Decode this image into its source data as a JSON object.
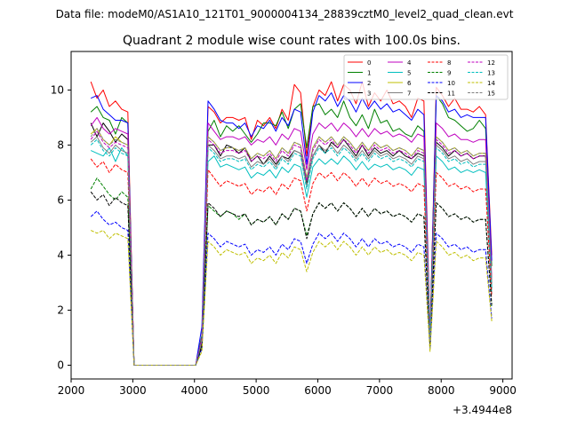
{
  "suptitle": "Data file: modeM0/AS1A10_121T01_9000004134_28839cztM0_level2_quad_clean.evt",
  "chart_data": {
    "type": "line",
    "title": "Quadrant 2 module wise count rates with 100.0s bins.",
    "xlabel": "",
    "ylabel": "",
    "x_offset_label": "+3.4944e8",
    "xlim": [
      2000,
      9150
    ],
    "ylim": [
      -0.5,
      11.4
    ],
    "xticks": [
      2000,
      3000,
      4000,
      5000,
      6000,
      7000,
      8000,
      9000
    ],
    "yticks": [
      0,
      2,
      4,
      6,
      8,
      10
    ],
    "x": [
      2320,
      2420,
      2520,
      2620,
      2720,
      2820,
      2920,
      3020,
      3120,
      3220,
      3320,
      3420,
      3520,
      3620,
      3720,
      3820,
      3920,
      4020,
      4120,
      4220,
      4320,
      4420,
      4520,
      4620,
      4720,
      4820,
      4920,
      5020,
      5120,
      5220,
      5320,
      5420,
      5520,
      5620,
      5720,
      5820,
      5920,
      6020,
      6120,
      6220,
      6320,
      6420,
      6520,
      6620,
      6720,
      6820,
      6920,
      7020,
      7120,
      7220,
      7320,
      7420,
      7520,
      7620,
      7720,
      7820,
      7920,
      8020,
      8120,
      8220,
      8320,
      8420,
      8520,
      8620,
      8720,
      8820
    ],
    "legend": {
      "location": "upper right",
      "ncol": 4
    },
    "series": [
      {
        "name": "0",
        "color": "#ff0000",
        "dash": "solid",
        "values": [
          10.3,
          9.7,
          10.0,
          9.4,
          9.6,
          9.3,
          9.2,
          0,
          0,
          0,
          0,
          0,
          0,
          0,
          0,
          0,
          0,
          0,
          1.0,
          9.4,
          9.2,
          8.8,
          9.0,
          9.0,
          8.9,
          9.0,
          8.2,
          8.9,
          8.7,
          9.0,
          8.6,
          9.3,
          8.9,
          10.2,
          9.9,
          7.6,
          9.4,
          10.0,
          9.8,
          10.3,
          9.6,
          10.2,
          10.0,
          9.5,
          10.3,
          9.4,
          9.9,
          9.6,
          10.0,
          9.5,
          9.6,
          9.4,
          9.0,
          9.7,
          9.6,
          1.1,
          10.1,
          9.8,
          9.4,
          9.7,
          9.3,
          9.3,
          9.2,
          9.4,
          9.1,
          4.0
        ]
      },
      {
        "name": "1",
        "color": "#008000",
        "dash": "solid",
        "values": [
          9.2,
          9.4,
          9.0,
          8.9,
          8.4,
          9.0,
          8.8,
          0,
          0,
          0,
          0,
          0,
          0,
          0,
          0,
          0,
          0,
          0,
          1.1,
          8.5,
          8.9,
          8.3,
          8.7,
          8.5,
          8.7,
          8.4,
          8.1,
          8.4,
          8.8,
          8.8,
          8.7,
          9.2,
          8.6,
          9.3,
          9.5,
          7.9,
          9.4,
          9.5,
          9.1,
          9.3,
          9.0,
          9.6,
          9.0,
          8.7,
          9.1,
          8.6,
          9.3,
          8.8,
          8.9,
          8.5,
          8.6,
          8.4,
          8.3,
          8.7,
          8.5,
          1.0,
          9.8,
          9.5,
          9.0,
          8.9,
          8.7,
          8.5,
          8.6,
          8.9,
          8.6,
          3.6
        ]
      },
      {
        "name": "2",
        "color": "#0000ff",
        "dash": "solid",
        "values": [
          9.7,
          9.8,
          9.3,
          9.1,
          8.9,
          8.9,
          8.8,
          0,
          0,
          0,
          0,
          0,
          0,
          0,
          0,
          0,
          0,
          0,
          1.4,
          9.6,
          9.3,
          8.9,
          8.8,
          8.8,
          8.6,
          8.8,
          8.3,
          8.7,
          8.6,
          8.9,
          8.5,
          9.0,
          8.7,
          9.3,
          9.2,
          7.3,
          9.2,
          9.8,
          9.6,
          9.9,
          9.4,
          9.8,
          9.6,
          9.2,
          9.7,
          9.3,
          9.6,
          9.3,
          9.5,
          9.2,
          9.3,
          9.1,
          8.9,
          9.3,
          9.1,
          1.0,
          9.8,
          9.6,
          9.2,
          9.3,
          9.0,
          9.1,
          9.0,
          9.0,
          9.0,
          3.8
        ]
      },
      {
        "name": "3",
        "color": "#000000",
        "dash": "solid",
        "values": [
          8.8,
          8.3,
          8.8,
          8.5,
          8.1,
          8.4,
          8.2,
          0,
          0,
          0,
          0,
          0,
          0,
          0,
          0,
          0,
          0,
          0,
          0.9,
          8.0,
          8.0,
          7.6,
          8.0,
          7.9,
          7.7,
          7.9,
          7.4,
          7.6,
          7.3,
          7.6,
          7.3,
          7.6,
          7.5,
          7.8,
          7.7,
          6.6,
          7.6,
          8.0,
          7.7,
          8.1,
          7.9,
          8.2,
          7.9,
          7.6,
          8.0,
          7.6,
          7.9,
          7.7,
          7.8,
          7.6,
          7.8,
          7.6,
          7.5,
          7.7,
          7.6,
          0.9,
          8.1,
          7.9,
          7.6,
          7.8,
          7.6,
          7.7,
          7.5,
          7.6,
          7.6,
          2.8
        ]
      },
      {
        "name": "4",
        "color": "#bf00bf",
        "dash": "solid",
        "values": [
          8.7,
          9.0,
          8.6,
          8.4,
          8.6,
          8.5,
          8.4,
          0,
          0,
          0,
          0,
          0,
          0,
          0,
          0,
          0,
          0,
          0,
          1.0,
          8.8,
          8.5,
          8.2,
          8.3,
          8.3,
          8.2,
          8.3,
          8.0,
          8.2,
          8.1,
          8.3,
          8.0,
          8.4,
          8.2,
          8.6,
          8.5,
          7.1,
          8.4,
          8.8,
          8.6,
          8.8,
          8.5,
          8.8,
          8.6,
          8.3,
          8.6,
          8.3,
          8.6,
          8.4,
          8.5,
          8.3,
          8.4,
          8.3,
          8.1,
          8.4,
          8.3,
          1.0,
          8.8,
          8.6,
          8.3,
          8.4,
          8.2,
          8.2,
          8.1,
          8.2,
          8.2,
          3.2
        ]
      },
      {
        "name": "5",
        "color": "#00bfbf",
        "dash": "solid",
        "values": [
          7.8,
          7.7,
          7.6,
          7.9,
          7.4,
          7.9,
          7.6,
          0,
          0,
          0,
          0,
          0,
          0,
          0,
          0,
          0,
          0,
          0,
          0.8,
          7.4,
          7.6,
          7.2,
          7.3,
          7.2,
          7.1,
          7.2,
          6.8,
          7.0,
          6.9,
          7.1,
          6.8,
          7.2,
          7.0,
          7.3,
          7.2,
          6.1,
          7.2,
          7.5,
          7.3,
          7.5,
          7.3,
          7.6,
          7.4,
          7.1,
          7.4,
          7.1,
          7.3,
          7.2,
          7.3,
          7.1,
          7.2,
          7.1,
          6.9,
          7.2,
          7.1,
          0.8,
          7.6,
          7.4,
          7.1,
          7.2,
          7.0,
          7.1,
          7.0,
          7.1,
          7.0,
          2.6
        ]
      },
      {
        "name": "6",
        "color": "#bfbf00",
        "dash": "solid",
        "values": [
          8.4,
          8.6,
          8.2,
          8.0,
          8.3,
          8.1,
          8.0,
          0,
          0,
          0,
          0,
          0,
          0,
          0,
          0,
          0,
          0,
          0,
          0.9,
          8.3,
          8.1,
          7.8,
          7.9,
          7.9,
          7.8,
          7.9,
          7.5,
          7.7,
          7.6,
          7.8,
          7.5,
          7.9,
          7.7,
          8.1,
          8.0,
          6.8,
          7.9,
          8.3,
          8.1,
          8.3,
          8.0,
          8.3,
          8.1,
          7.8,
          8.1,
          7.8,
          8.1,
          7.9,
          8.0,
          7.8,
          7.9,
          7.8,
          7.6,
          7.9,
          7.8,
          0.9,
          8.3,
          8.1,
          7.8,
          7.9,
          7.7,
          7.8,
          7.6,
          7.7,
          7.7,
          3.0
        ]
      },
      {
        "name": "7",
        "color": "#808080",
        "dash": "solid",
        "values": [
          8.1,
          8.3,
          7.9,
          7.7,
          8.0,
          7.8,
          7.7,
          0,
          0,
          0,
          0,
          0,
          0,
          0,
          0,
          0,
          0,
          0,
          0.9,
          8.0,
          7.8,
          7.5,
          7.6,
          7.6,
          7.5,
          7.6,
          7.2,
          7.4,
          7.3,
          7.5,
          7.2,
          7.6,
          7.4,
          7.8,
          7.7,
          6.5,
          7.6,
          8.0,
          7.8,
          8.0,
          7.7,
          8.0,
          7.8,
          7.5,
          7.8,
          7.5,
          7.8,
          7.6,
          7.7,
          7.5,
          7.6,
          7.5,
          7.3,
          7.6,
          7.5,
          0.9,
          8.0,
          7.8,
          7.5,
          7.6,
          7.4,
          7.5,
          7.3,
          7.4,
          7.4,
          2.9
        ]
      },
      {
        "name": "8",
        "color": "#ff0000",
        "dash": "dashed",
        "values": [
          7.5,
          7.2,
          7.4,
          7.0,
          7.3,
          7.1,
          7.0,
          0,
          0,
          0,
          0,
          0,
          0,
          0,
          0,
          0,
          0,
          0,
          0.8,
          7.1,
          6.8,
          6.5,
          6.7,
          6.6,
          6.5,
          6.6,
          6.2,
          6.4,
          6.3,
          6.5,
          6.2,
          6.6,
          6.4,
          6.8,
          6.7,
          5.6,
          6.6,
          7.0,
          6.8,
          7.0,
          6.7,
          7.0,
          6.8,
          6.5,
          6.8,
          6.5,
          6.8,
          6.6,
          6.7,
          6.5,
          6.6,
          6.5,
          6.3,
          6.6,
          6.5,
          0.8,
          7.0,
          6.8,
          6.5,
          6.6,
          6.4,
          6.5,
          6.3,
          6.4,
          6.4,
          2.5
        ]
      },
      {
        "name": "9",
        "color": "#008000",
        "dash": "dashed",
        "values": [
          6.4,
          6.8,
          6.5,
          6.2,
          6.0,
          6.3,
          6.1,
          0,
          0,
          0,
          0,
          0,
          0,
          0,
          0,
          0,
          0,
          0,
          0.7,
          5.8,
          5.6,
          5.4,
          5.6,
          5.5,
          5.3,
          5.5,
          5.1,
          5.3,
          5.2,
          5.4,
          5.1,
          5.5,
          5.3,
          5.7,
          5.6,
          4.7,
          5.5,
          5.9,
          5.7,
          5.9,
          5.6,
          5.9,
          5.7,
          5.4,
          5.7,
          5.4,
          5.7,
          5.5,
          5.6,
          5.4,
          5.5,
          5.4,
          5.2,
          5.5,
          5.4,
          0.7,
          5.9,
          5.7,
          5.4,
          5.5,
          5.3,
          5.4,
          5.2,
          5.3,
          5.3,
          2.1
        ]
      },
      {
        "name": "10",
        "color": "#0000ff",
        "dash": "dashed",
        "values": [
          5.4,
          5.6,
          5.3,
          5.1,
          5.2,
          5.0,
          4.9,
          0,
          0,
          0,
          0,
          0,
          0,
          0,
          0,
          0,
          0,
          0,
          0.6,
          4.8,
          4.6,
          4.3,
          4.5,
          4.4,
          4.3,
          4.4,
          4.0,
          4.2,
          4.1,
          4.3,
          4.0,
          4.4,
          4.2,
          4.6,
          4.5,
          3.7,
          4.4,
          4.8,
          4.6,
          4.8,
          4.5,
          4.8,
          4.6,
          4.3,
          4.6,
          4.3,
          4.6,
          4.4,
          4.5,
          4.3,
          4.4,
          4.3,
          4.1,
          4.4,
          4.3,
          0.6,
          4.8,
          4.6,
          4.3,
          4.4,
          4.2,
          4.3,
          4.1,
          4.2,
          4.2,
          1.7
        ]
      },
      {
        "name": "11",
        "color": "#000000",
        "dash": "dashed",
        "values": [
          6.3,
          6.0,
          6.2,
          5.8,
          6.1,
          5.9,
          5.8,
          0,
          0,
          0,
          0,
          0,
          0,
          0,
          0,
          0,
          0,
          0,
          0.7,
          5.9,
          5.7,
          5.4,
          5.6,
          5.5,
          5.4,
          5.5,
          5.1,
          5.3,
          5.2,
          5.4,
          5.1,
          5.5,
          5.3,
          5.7,
          5.6,
          4.6,
          5.5,
          5.9,
          5.7,
          5.9,
          5.6,
          5.9,
          5.7,
          5.4,
          5.7,
          5.4,
          5.7,
          5.5,
          5.6,
          5.4,
          5.5,
          5.4,
          5.2,
          5.5,
          5.4,
          0.7,
          5.9,
          5.7,
          5.4,
          5.5,
          5.3,
          5.4,
          5.2,
          5.3,
          5.3,
          2.2
        ]
      },
      {
        "name": "12",
        "color": "#bf00bf",
        "dash": "dashed",
        "values": [
          8.2,
          8.5,
          8.1,
          7.9,
          8.1,
          8.0,
          7.9,
          0,
          0,
          0,
          0,
          0,
          0,
          0,
          0,
          0,
          0,
          0,
          0.9,
          8.2,
          8.0,
          7.7,
          7.8,
          7.8,
          7.7,
          7.8,
          7.4,
          7.6,
          7.5,
          7.7,
          7.4,
          7.8,
          7.6,
          8.0,
          7.9,
          6.7,
          7.8,
          8.2,
          8.0,
          8.2,
          7.9,
          8.2,
          8.0,
          7.7,
          8.0,
          7.7,
          8.0,
          7.8,
          7.9,
          7.7,
          7.8,
          7.7,
          7.5,
          7.8,
          7.7,
          0.9,
          8.2,
          8.0,
          7.7,
          7.8,
          7.6,
          7.7,
          7.5,
          7.6,
          7.6,
          3.0
        ]
      },
      {
        "name": "13",
        "color": "#00bfbf",
        "dash": "dashed",
        "values": [
          8.0,
          8.2,
          7.8,
          7.6,
          7.9,
          7.7,
          7.6,
          0,
          0,
          0,
          0,
          0,
          0,
          0,
          0,
          0,
          0,
          0,
          0.9,
          7.9,
          7.7,
          7.4,
          7.5,
          7.5,
          7.4,
          7.5,
          7.1,
          7.3,
          7.2,
          7.4,
          7.1,
          7.5,
          7.3,
          7.7,
          7.6,
          6.4,
          7.5,
          7.9,
          7.7,
          7.9,
          7.6,
          7.9,
          7.7,
          7.4,
          7.7,
          7.4,
          7.7,
          7.5,
          7.6,
          7.4,
          7.5,
          7.4,
          7.2,
          7.5,
          7.4,
          0.9,
          7.9,
          7.7,
          7.4,
          7.5,
          7.3,
          7.4,
          7.2,
          7.3,
          7.3,
          2.8
        ]
      },
      {
        "name": "14",
        "color": "#bfbf00",
        "dash": "dashed",
        "values": [
          4.9,
          4.8,
          4.9,
          4.6,
          4.8,
          4.7,
          4.6,
          0,
          0,
          0,
          0,
          0,
          0,
          0,
          0,
          0,
          0,
          0,
          0.5,
          4.5,
          4.3,
          4.0,
          4.2,
          4.1,
          4.0,
          4.1,
          3.7,
          3.9,
          3.8,
          4.0,
          3.7,
          4.1,
          3.9,
          4.3,
          4.2,
          3.4,
          4.1,
          4.5,
          4.3,
          4.5,
          4.2,
          4.5,
          4.3,
          4.0,
          4.3,
          4.0,
          4.3,
          4.1,
          4.2,
          4.0,
          4.1,
          4.0,
          3.8,
          4.1,
          4.0,
          0.5,
          4.5,
          4.3,
          4.0,
          4.1,
          3.9,
          4.0,
          3.8,
          3.9,
          3.9,
          1.6
        ]
      },
      {
        "name": "15",
        "color": "#808080",
        "dash": "dashed",
        "values": [
          8.3,
          8.6,
          8.2,
          8.0,
          8.2,
          8.1,
          8.0,
          0,
          0,
          0,
          0,
          0,
          0,
          0,
          0,
          0,
          0,
          0,
          0.9,
          8.3,
          8.1,
          7.8,
          7.9,
          7.9,
          7.8,
          7.9,
          7.5,
          7.7,
          7.6,
          7.8,
          7.5,
          7.9,
          7.7,
          8.1,
          8.0,
          6.8,
          7.9,
          8.3,
          8.1,
          8.3,
          8.0,
          8.3,
          8.1,
          7.8,
          8.1,
          7.8,
          8.1,
          7.9,
          8.0,
          7.8,
          7.9,
          7.8,
          7.6,
          7.9,
          7.8,
          0.9,
          8.3,
          8.1,
          7.8,
          7.9,
          7.7,
          7.8,
          7.6,
          7.7,
          7.7,
          3.0
        ]
      }
    ]
  }
}
